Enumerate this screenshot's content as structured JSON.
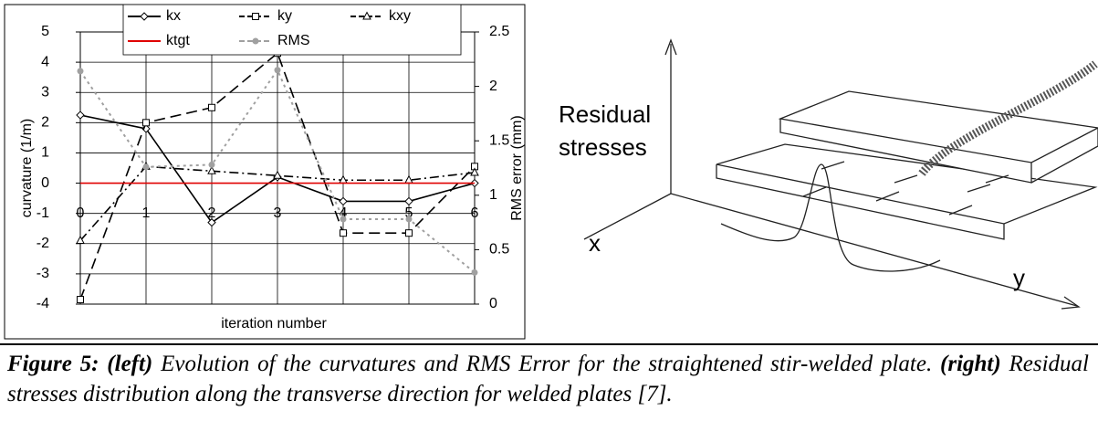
{
  "chart_data": {
    "type": "line",
    "categories": [
      "0",
      "1",
      "2",
      "3",
      "4",
      "5",
      "6"
    ],
    "y_label": "curvature (1/m)",
    "y2_label": "RMS error (mm)",
    "x_label": "iteration number",
    "ylim": [
      -4,
      5
    ],
    "yticks": [
      -4,
      -3,
      -2,
      -1,
      0,
      1,
      2,
      3,
      4,
      5
    ],
    "y2lim": [
      0,
      2.5
    ],
    "y2ticks": [
      0,
      0.5,
      1,
      1.5,
      2,
      2.5
    ],
    "grid": true,
    "series": [
      {
        "name": "kx",
        "color": "#000000",
        "marker": "diamond",
        "dash": "solid",
        "values": [
          2.25,
          1.8,
          -1.3,
          0.2,
          -0.6,
          -0.6,
          0
        ]
      },
      {
        "name": "ky",
        "color": "#000000",
        "marker": "square",
        "dash": "dashed",
        "values": [
          -3.85,
          2.0,
          2.5,
          4.3,
          -1.65,
          -1.65,
          0.55
        ]
      },
      {
        "name": "kxy",
        "color": "#000000",
        "marker": "triangle",
        "dash": "dashdot",
        "values": [
          -1.9,
          0.55,
          0.4,
          0.25,
          0.1,
          0.1,
          0.35
        ]
      },
      {
        "name": "ktgt",
        "color": "#e00000",
        "marker": "none",
        "dash": "solid",
        "values": [
          0,
          0,
          0,
          0,
          0,
          0,
          0
        ]
      },
      {
        "name": "RMS",
        "color": "#a0a0a0",
        "marker": "circle",
        "dash": "dotted",
        "axis": "y2",
        "values": [
          2.14,
          1.26,
          1.28,
          2.15,
          0.78,
          0.78,
          0.29
        ]
      }
    ]
  },
  "diagram": {
    "stress_label": [
      "Residual",
      "stresses"
    ],
    "x_axis": "x",
    "y_axis": "y"
  },
  "caption": {
    "label": "Figure 5:",
    "left_tag": "(left)",
    "left_text": "Evolution of the curvatures and RMS Error for the straightened stir-welded plate.",
    "right_tag": "(right)",
    "right_text": "Residual stresses distribution along the transverse direction for welded plates [7]."
  }
}
